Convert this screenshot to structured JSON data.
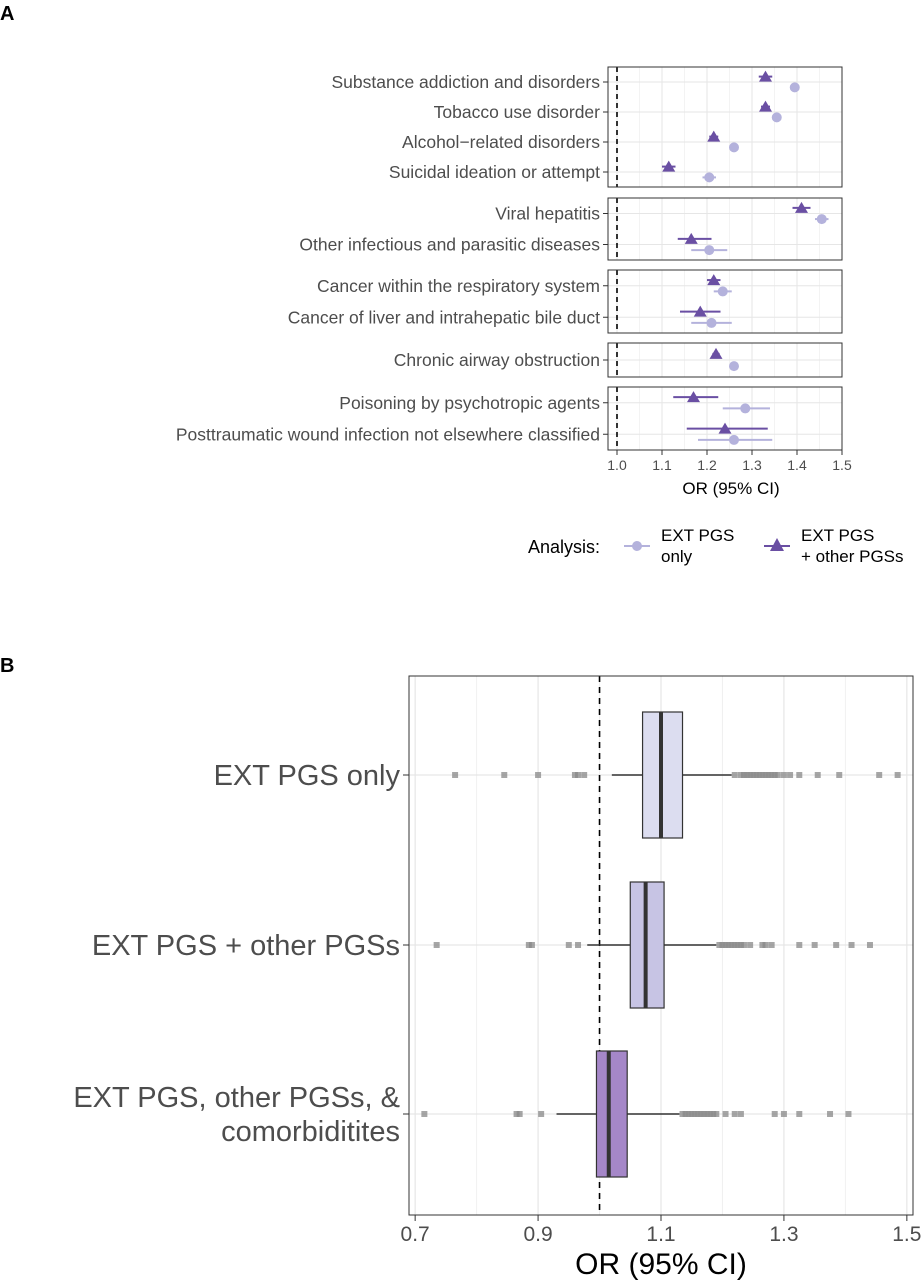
{
  "colors": {
    "ext_only": "#b4b2dc",
    "ext_other": "#6a4fa3",
    "grid": "#e6e6e6",
    "box_b1": "#dcddf0",
    "box_b2": "#c7c4e4",
    "box_b3": "#a587c8",
    "outlier": "#888888",
    "label": "#4d4d4d"
  },
  "chart_data": [
    {
      "panel": "A",
      "type": "forest",
      "xlabel": "OR (95% CI)",
      "xlim": [
        0.98,
        1.5
      ],
      "xticks": [
        1.0,
        1.1,
        1.2,
        1.3,
        1.4,
        1.5
      ],
      "xtick_labels": [
        "1.0",
        "1.1",
        "1.2",
        "1.3",
        "1.4",
        "1.5"
      ],
      "reference_line": 1.0,
      "legend": {
        "title": "Analysis:",
        "position": "bottom",
        "entries": [
          {
            "key": "ext_only",
            "label_line1": "EXT PGS",
            "label_line2": "only",
            "shape": "circle"
          },
          {
            "key": "ext_other",
            "label_line1": "EXT PGS",
            "label_line2": "+ other PGSs",
            "shape": "triangle"
          }
        ]
      },
      "facets": [
        {
          "rows": [
            {
              "label": "Substance addiction and disorders",
              "ext_other": {
                "or": 1.33,
                "lo": 1.315,
                "hi": 1.345
              },
              "ext_only": {
                "or": 1.395,
                "lo": 1.385,
                "hi": 1.405
              }
            },
            {
              "label": "Tobacco use disorder",
              "ext_other": {
                "or": 1.33,
                "lo": 1.32,
                "hi": 1.34
              },
              "ext_only": {
                "or": 1.355,
                "lo": 1.345,
                "hi": 1.365
              }
            },
            {
              "label": "Alcohol−related disorders",
              "ext_other": {
                "or": 1.215,
                "lo": 1.205,
                "hi": 1.225
              },
              "ext_only": {
                "or": 1.26,
                "lo": 1.25,
                "hi": 1.27
              }
            },
            {
              "label": "Suicidal ideation or attempt",
              "ext_other": {
                "or": 1.115,
                "lo": 1.1,
                "hi": 1.13
              },
              "ext_only": {
                "or": 1.205,
                "lo": 1.19,
                "hi": 1.22
              }
            }
          ]
        },
        {
          "rows": [
            {
              "label": "Viral hepatitis",
              "ext_other": {
                "or": 1.41,
                "lo": 1.39,
                "hi": 1.43
              },
              "ext_only": {
                "or": 1.455,
                "lo": 1.44,
                "hi": 1.47
              }
            },
            {
              "label": "Other infectious and parasitic diseases",
              "ext_other": {
                "or": 1.165,
                "lo": 1.135,
                "hi": 1.21
              },
              "ext_only": {
                "or": 1.205,
                "lo": 1.165,
                "hi": 1.245
              }
            }
          ]
        },
        {
          "rows": [
            {
              "label": "Cancer within the respiratory system",
              "ext_other": {
                "or": 1.215,
                "lo": 1.2,
                "hi": 1.23
              },
              "ext_only": {
                "or": 1.235,
                "lo": 1.215,
                "hi": 1.255
              }
            },
            {
              "label": "Cancer of liver and intrahepatic bile duct",
              "ext_other": {
                "or": 1.185,
                "lo": 1.14,
                "hi": 1.23
              },
              "ext_only": {
                "or": 1.21,
                "lo": 1.165,
                "hi": 1.255
              }
            }
          ]
        },
        {
          "rows": [
            {
              "label": "Chronic airway obstruction",
              "ext_other": {
                "or": 1.22,
                "lo": 1.212,
                "hi": 1.228
              },
              "ext_only": {
                "or": 1.26,
                "lo": 1.252,
                "hi": 1.268
              }
            }
          ]
        },
        {
          "rows": [
            {
              "label": "Poisoning by psychotropic agents",
              "ext_other": {
                "or": 1.17,
                "lo": 1.125,
                "hi": 1.225
              },
              "ext_only": {
                "or": 1.285,
                "lo": 1.235,
                "hi": 1.34
              }
            },
            {
              "label": "Posttraumatic wound infection not elsewhere classified",
              "ext_other": {
                "or": 1.24,
                "lo": 1.155,
                "hi": 1.335
              },
              "ext_only": {
                "or": 1.26,
                "lo": 1.18,
                "hi": 1.345
              }
            }
          ]
        }
      ]
    },
    {
      "panel": "B",
      "type": "boxplot",
      "xlabel": "OR (95% CI)",
      "xlim": [
        0.69,
        1.51
      ],
      "xticks": [
        0.7,
        0.9,
        1.1,
        1.3,
        1.5
      ],
      "xtick_labels": [
        "0.7",
        "0.9",
        "1.1",
        "1.3",
        "1.5"
      ],
      "reference_line": 1.0,
      "groups": [
        {
          "label_lines": [
            "EXT PGS only"
          ],
          "color_key": "box_b1",
          "q1": 1.07,
          "median": 1.1,
          "q3": 1.135,
          "whisker_lo": 1.02,
          "whisker_hi": 1.215,
          "outliers": [
            0.765,
            0.845,
            0.9,
            0.96,
            0.965,
            0.975,
            1.22,
            1.23,
            1.235,
            1.24,
            1.245,
            1.25,
            1.255,
            1.26,
            1.265,
            1.27,
            1.275,
            1.28,
            1.285,
            1.29,
            1.3,
            1.31,
            1.325,
            1.355,
            1.39,
            1.455,
            1.485
          ]
        },
        {
          "label_lines": [
            "EXT PGS + other PGSs"
          ],
          "color_key": "box_b2",
          "q1": 1.05,
          "median": 1.075,
          "q3": 1.105,
          "whisker_lo": 0.98,
          "whisker_hi": 1.19,
          "outliers": [
            0.735,
            0.885,
            0.89,
            0.95,
            0.965,
            1.195,
            1.2,
            1.205,
            1.21,
            1.215,
            1.22,
            1.225,
            1.23,
            1.235,
            1.245,
            1.265,
            1.27,
            1.28,
            1.325,
            1.35,
            1.385,
            1.41,
            1.44
          ]
        },
        {
          "label_lines": [
            "EXT PGS, other PGSs, &",
            "comorbiditites"
          ],
          "color_key": "box_b3",
          "q1": 0.995,
          "median": 1.015,
          "q3": 1.045,
          "whisker_lo": 0.93,
          "whisker_hi": 1.13,
          "outliers": [
            0.715,
            0.865,
            0.87,
            0.905,
            1.135,
            1.14,
            1.145,
            1.15,
            1.155,
            1.16,
            1.165,
            1.17,
            1.175,
            1.18,
            1.185,
            1.19,
            1.205,
            1.22,
            1.23,
            1.285,
            1.3,
            1.325,
            1.375,
            1.405
          ]
        }
      ]
    }
  ],
  "panel_labels": {
    "a": "A",
    "b": "B"
  }
}
